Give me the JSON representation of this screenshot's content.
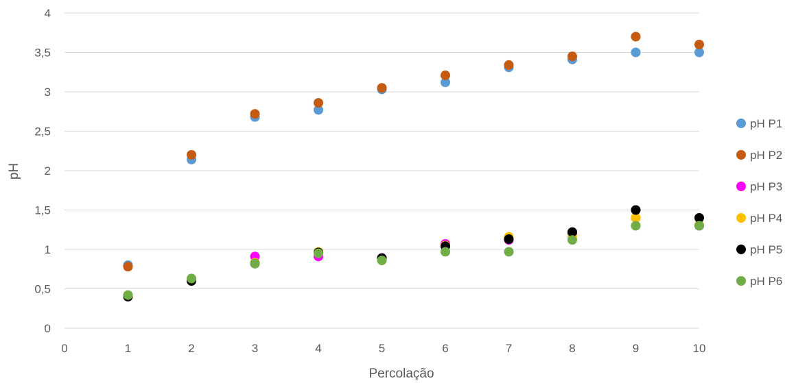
{
  "chart_data": {
    "type": "scatter",
    "title": "",
    "xlabel": "Percolação",
    "ylabel": "pH",
    "xlim": [
      0,
      10
    ],
    "ylim": [
      0,
      4
    ],
    "x_ticks": [
      "0",
      "1",
      "2",
      "3",
      "4",
      "5",
      "6",
      "7",
      "8",
      "9",
      "10"
    ],
    "y_ticks": [
      "0",
      "0,5",
      "1",
      "1,5",
      "2",
      "2,5",
      "3",
      "3,5",
      "4"
    ],
    "grid": "horizontal",
    "legend_position": "right",
    "series": [
      {
        "name": "pH P1",
        "color": "#5b9bd5",
        "x": [
          1,
          2,
          3,
          4,
          5,
          6,
          7,
          8,
          9,
          10
        ],
        "y": [
          0.8,
          2.14,
          2.68,
          2.77,
          3.03,
          3.12,
          3.31,
          3.41,
          3.5,
          3.5
        ]
      },
      {
        "name": "pH P2",
        "color": "#c55a11",
        "x": [
          1,
          2,
          3,
          4,
          5,
          6,
          7,
          8,
          9,
          10
        ],
        "y": [
          0.78,
          2.2,
          2.72,
          2.86,
          3.05,
          3.21,
          3.34,
          3.45,
          3.7,
          3.6
        ]
      },
      {
        "name": "pH P3",
        "color": "#ff00ff",
        "x": [
          1,
          2,
          3,
          4,
          5,
          6,
          7,
          8,
          9,
          10
        ],
        "y": [
          0.41,
          0.62,
          0.91,
          0.91,
          0.89,
          1.07,
          1.12,
          1.2,
          1.4,
          1.3
        ]
      },
      {
        "name": "pH P4",
        "color": "#ffc000",
        "x": [
          1,
          2,
          3,
          4,
          5,
          6,
          7,
          8,
          9,
          10
        ],
        "y": [
          0.42,
          0.63,
          0.83,
          0.97,
          0.87,
          1.05,
          1.16,
          1.17,
          1.4,
          1.31
        ]
      },
      {
        "name": "pH P5",
        "color": "#000000",
        "x": [
          1,
          2,
          3,
          4,
          5,
          6,
          7,
          8,
          9,
          10
        ],
        "y": [
          0.4,
          0.6,
          0.82,
          0.96,
          0.89,
          1.04,
          1.13,
          1.22,
          1.5,
          1.4
        ]
      },
      {
        "name": "pH P6",
        "color": "#70ad47",
        "x": [
          1,
          2,
          3,
          4,
          5,
          6,
          7,
          8,
          9,
          10
        ],
        "y": [
          0.42,
          0.63,
          0.82,
          0.95,
          0.86,
          0.97,
          0.97,
          1.12,
          1.3,
          1.3
        ]
      }
    ]
  }
}
